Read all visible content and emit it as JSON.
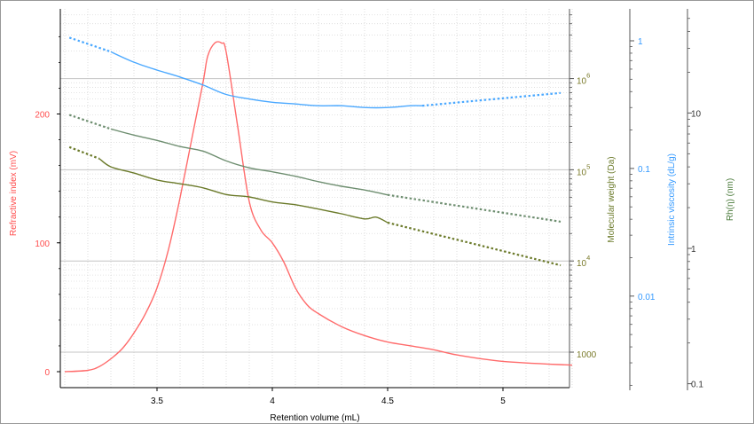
{
  "chart_data": {
    "type": "line",
    "xlabel": "Retention volume (mL)",
    "xlim": [
      3.1,
      5.3
    ],
    "x_ticks": [
      "3.5",
      "4",
      "4.5",
      "5"
    ],
    "grid": true,
    "axes": {
      "ri": {
        "label": "Refractive index (mV)",
        "color": "#ff4d4d",
        "ticks": [
          "0",
          "100",
          "200"
        ],
        "range": [
          -5,
          265
        ]
      },
      "mw": {
        "label": "Molecular weight (Da)",
        "color": "#7a7a2a",
        "ticks": [
          {
            "base": "1000",
            "exp": ""
          },
          {
            "base": "10",
            "exp": "4"
          },
          {
            "base": "10",
            "exp": "5"
          },
          {
            "base": "10",
            "exp": "6"
          }
        ],
        "log": true
      },
      "iv": {
        "label": "Intrinsic viscosity (dL/g)",
        "color": "#3399ff",
        "ticks": [
          "0.01",
          "0.1",
          "1"
        ],
        "log": true
      },
      "rh": {
        "label": "Rh(η) (nm)",
        "color": "#4a7a3a",
        "ticks": [
          "0.1",
          "1",
          "10"
        ],
        "log": true
      }
    },
    "series": [
      {
        "key": "ri",
        "axis": "ri",
        "color": "#ff6b6b",
        "x": [
          3.1,
          3.2,
          3.25,
          3.3,
          3.35,
          3.4,
          3.45,
          3.5,
          3.55,
          3.6,
          3.65,
          3.7,
          3.72,
          3.75,
          3.78,
          3.8,
          3.85,
          3.9,
          3.95,
          4.0,
          4.05,
          4.1,
          4.15,
          4.2,
          4.3,
          4.4,
          4.5,
          4.6,
          4.7,
          4.8,
          5.0,
          5.3
        ],
        "y": [
          0,
          1,
          4,
          10,
          18,
          30,
          45,
          65,
          95,
          135,
          180,
          225,
          245,
          255,
          255,
          248,
          190,
          132,
          110,
          100,
          85,
          65,
          52,
          45,
          35,
          28,
          23,
          20,
          17,
          13,
          8,
          5
        ]
      },
      {
        "key": "iv",
        "axis": "iv",
        "color": "#4aa8ff",
        "x": [
          3.3,
          3.4,
          3.5,
          3.6,
          3.7,
          3.8,
          3.9,
          4.0,
          4.1,
          4.2,
          4.3,
          4.4,
          4.5,
          4.6,
          4.65
        ],
        "y": [
          0.82,
          0.68,
          0.59,
          0.52,
          0.45,
          0.38,
          0.35,
          0.33,
          0.32,
          0.31,
          0.31,
          0.3,
          0.3,
          0.31,
          0.31
        ],
        "extrapolated": [
          {
            "x": [
              3.12,
              3.3
            ],
            "y": [
              1.06,
              0.82
            ]
          },
          {
            "x": [
              4.65,
              5.25
            ],
            "y": [
              0.31,
              0.39
            ]
          }
        ]
      },
      {
        "key": "mw",
        "axis": "mw",
        "color": "#6e8e70",
        "x": [
          3.3,
          3.4,
          3.5,
          3.6,
          3.7,
          3.8,
          3.9,
          4.0,
          4.1,
          4.2,
          4.3,
          4.4,
          4.5
        ],
        "y": [
          280000,
          240000,
          210000,
          180000,
          160000,
          125000,
          105000,
          95000,
          85000,
          74000,
          66000,
          60000,
          53000
        ],
        "extrapolated": [
          {
            "x": [
              3.12,
              3.3
            ],
            "y": [
              400000,
              280000
            ]
          },
          {
            "x": [
              4.5,
              5.25
            ],
            "y": [
              53000,
              27000
            ]
          }
        ]
      },
      {
        "key": "rh",
        "axis": "rh",
        "color": "#6b7a2a",
        "x": [
          3.25,
          3.3,
          3.4,
          3.5,
          3.6,
          3.7,
          3.8,
          3.9,
          4.0,
          4.1,
          4.2,
          4.3,
          4.4,
          4.45,
          4.5
        ],
        "y": [
          4.6,
          4.0,
          3.6,
          3.2,
          3.0,
          2.8,
          2.5,
          2.4,
          2.2,
          2.1,
          1.95,
          1.8,
          1.65,
          1.7,
          1.55
        ],
        "extrapolated": [
          {
            "x": [
              3.12,
              3.25
            ],
            "y": [
              5.6,
              4.6
            ]
          },
          {
            "x": [
              4.5,
              5.25
            ],
            "y": [
              1.55,
              0.75
            ]
          }
        ]
      }
    ]
  }
}
